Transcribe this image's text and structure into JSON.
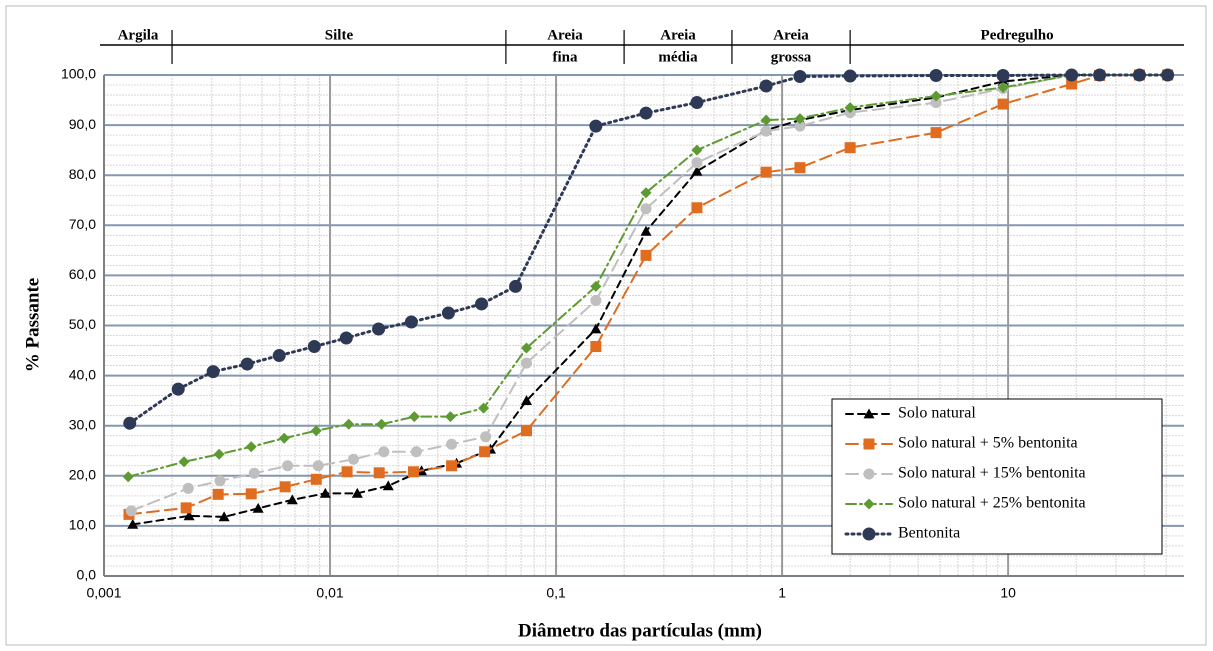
{
  "chart_data": {
    "type": "line",
    "x_label": "Diâmetro das partículas (mm)",
    "y_label": "% Passante",
    "xscale": "log",
    "xlim": [
      0.001,
      60
    ],
    "ylim": [
      0,
      100
    ],
    "xticks": [
      {
        "value": 0.001,
        "label": "0,001"
      },
      {
        "value": 0.01,
        "label": "0,01"
      },
      {
        "value": 0.1,
        "label": "0,1"
      },
      1,
      10
    ],
    "yticks": [
      {
        "value": 0,
        "label": "0,0"
      },
      {
        "value": 10,
        "label": "10,0"
      },
      {
        "value": 20,
        "label": "20,0"
      },
      {
        "value": 30,
        "label": "30,0"
      },
      {
        "value": 40,
        "label": "40,0"
      },
      {
        "value": 50,
        "label": "50,0"
      },
      {
        "value": 60,
        "label": "60,0"
      },
      {
        "value": 70,
        "label": "70,0"
      },
      {
        "value": 80,
        "label": "80,0"
      },
      {
        "value": 90,
        "label": "90,0"
      },
      {
        "value": 100,
        "label": "100,0"
      }
    ],
    "grid": true,
    "legend_position": "lower right",
    "soil_classes": {
      "boundaries": [
        0.002,
        0.06,
        0.2,
        0.6,
        2
      ],
      "labels": [
        [
          "Argila"
        ],
        [
          "Silte"
        ],
        [
          "Areia",
          "fina"
        ],
        [
          "Areia",
          "média"
        ],
        [
          "Areia",
          "grossa"
        ],
        [
          "Pedregulho"
        ]
      ]
    },
    "series": [
      {
        "name": "Solo natural",
        "color": "#000000",
        "marker": "triangle",
        "linestyle": "dashed",
        "x": [
          0.00134,
          0.00238,
          0.0034,
          0.00481,
          0.00681,
          0.00953,
          0.0132,
          0.0181,
          0.0254,
          0.0363,
          0.0513,
          0.074,
          0.15,
          0.25,
          0.42,
          0.85,
          1.2,
          2.0,
          4.8,
          9.5,
          19.1,
          25.4,
          38.1,
          50.8
        ],
        "values": [
          10.3,
          12.0,
          11.8,
          13.5,
          15.2,
          16.5,
          16.5,
          18.0,
          21.0,
          22.5,
          25.3,
          35.0,
          49.3,
          68.8,
          80.8,
          89.0,
          91.0,
          93.0,
          95.5,
          98.7,
          100,
          100,
          100,
          100
        ]
      },
      {
        "name": "Solo natural + 5% bentonita",
        "color": "#e06c1f",
        "marker": "square",
        "linestyle": "longdash",
        "x": [
          0.00129,
          0.00231,
          0.0032,
          0.00448,
          0.00633,
          0.00869,
          0.0119,
          0.0165,
          0.0234,
          0.0345,
          0.0483,
          0.074,
          0.15,
          0.25,
          0.42,
          0.85,
          1.2,
          2.0,
          4.8,
          9.5,
          19.1,
          25.4,
          38.1,
          50.8
        ],
        "values": [
          12.3,
          13.6,
          16.3,
          16.4,
          17.8,
          19.3,
          20.8,
          20.6,
          20.8,
          22.0,
          24.8,
          29.0,
          45.8,
          64.0,
          73.5,
          80.6,
          81.5,
          85.5,
          88.5,
          94.2,
          98.2,
          99.9,
          100,
          100
        ]
      },
      {
        "name": "Solo natural + 15% bentonita",
        "color": "#bfbfbf",
        "marker": "circle",
        "linestyle": "longdash",
        "x": [
          0.00132,
          0.00236,
          0.00326,
          0.00462,
          0.00649,
          0.00887,
          0.0127,
          0.0173,
          0.0241,
          0.0345,
          0.0488,
          0.074,
          0.15,
          0.25,
          0.42,
          0.85,
          1.2,
          2.0,
          4.8,
          9.5,
          19.1,
          25.4,
          38.1,
          50.8
        ],
        "values": [
          13.0,
          17.5,
          19.0,
          20.5,
          22.0,
          22.0,
          23.3,
          24.8,
          24.8,
          26.3,
          27.8,
          42.5,
          55.0,
          73.3,
          82.5,
          88.8,
          89.8,
          92.5,
          94.5,
          97.3,
          100,
          100,
          100,
          100
        ]
      },
      {
        "name": "Solo natural + 25% bentonita",
        "color": "#5e9a32",
        "marker": "diamond",
        "linestyle": "dashdot",
        "x": [
          0.00128,
          0.00226,
          0.00323,
          0.00448,
          0.00627,
          0.00869,
          0.0121,
          0.0169,
          0.0236,
          0.0341,
          0.0478,
          0.074,
          0.15,
          0.25,
          0.42,
          0.85,
          1.2,
          2.0,
          4.8,
          9.5,
          19.1,
          25.4,
          38.1,
          50.8
        ],
        "values": [
          19.8,
          22.8,
          24.3,
          25.8,
          27.5,
          29.0,
          30.3,
          30.3,
          31.8,
          31.8,
          33.5,
          45.5,
          57.8,
          76.5,
          85.0,
          91.0,
          91.3,
          93.5,
          95.8,
          97.5,
          100,
          100,
          100,
          100
        ]
      },
      {
        "name": "Bentonita",
        "color": "#2e3a55",
        "marker": "circle",
        "linestyle": "dotted",
        "x": [
          0.0013,
          0.00213,
          0.00304,
          0.0043,
          0.00596,
          0.00852,
          0.0118,
          0.0164,
          0.0229,
          0.0334,
          0.0468,
          0.0662,
          0.15,
          0.25,
          0.42,
          0.85,
          1.2,
          2.0,
          4.8,
          9.5,
          19.1,
          25.4,
          38.1,
          50.8
        ],
        "values": [
          30.5,
          37.3,
          40.8,
          42.3,
          44.0,
          45.8,
          47.5,
          49.3,
          50.7,
          52.5,
          54.3,
          57.8,
          89.8,
          92.4,
          94.5,
          97.8,
          99.7,
          99.8,
          99.9,
          99.9,
          100,
          100,
          100,
          100
        ]
      }
    ]
  }
}
